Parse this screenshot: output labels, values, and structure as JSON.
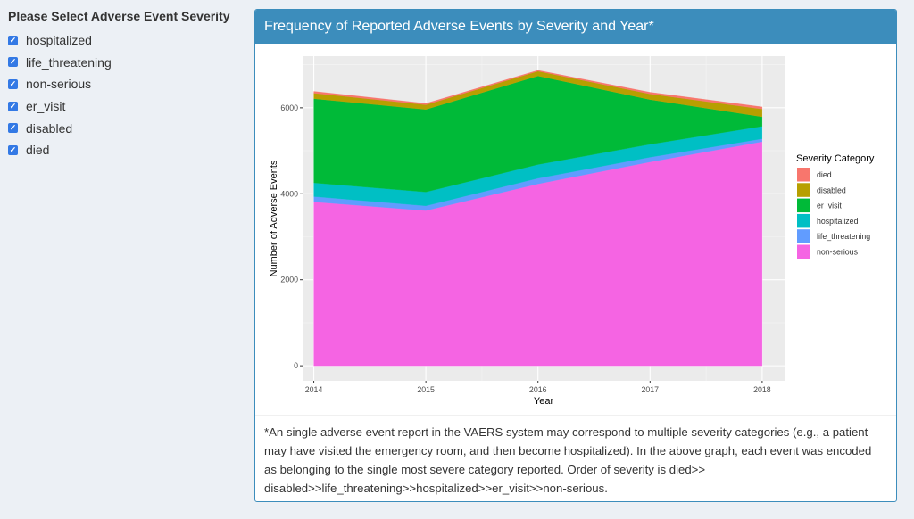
{
  "sidebar": {
    "title": "Please Select Adverse Event Severity",
    "options": [
      {
        "label": "hospitalized",
        "checked": true
      },
      {
        "label": "life_threatening",
        "checked": true
      },
      {
        "label": "non-serious",
        "checked": true
      },
      {
        "label": "er_visit",
        "checked": true
      },
      {
        "label": "disabled",
        "checked": true
      },
      {
        "label": "died",
        "checked": true
      }
    ]
  },
  "panel": {
    "title": "Frequency of Reported Adverse Events by Severity and Year*",
    "footnote": "*An single adverse event report in the VAERS system may correspond to multiple severity categories (e.g., a patient may have visited the emergency room, and then become hospitalized). In the above graph, each event was encoded as belonging to the single most severe category reported. Order of severity is died>> disabled>>life_threatening>>hospitalized>>er_visit>>non-serious."
  },
  "chart_data": {
    "type": "area",
    "stacked": true,
    "title": "",
    "xlabel": "Year",
    "ylabel": "Number of Adverse Events",
    "x": [
      2014,
      2015,
      2016,
      2017,
      2018
    ],
    "xticks": [
      "2014",
      "2015",
      "2016",
      "2017",
      "2018"
    ],
    "yticks": [
      0,
      2000,
      4000,
      6000
    ],
    "ylim": [
      -350,
      7200
    ],
    "xlim": [
      2013.9,
      2018.2
    ],
    "grid": true,
    "legend": {
      "title": "Severity Category",
      "position": "right",
      "entries": [
        "died",
        "disabled",
        "er_visit",
        "hospitalized",
        "life_threatening",
        "non-serious"
      ]
    },
    "stack_order_bottom_to_top": [
      "non-serious",
      "life_threatening",
      "hospitalized",
      "er_visit",
      "disabled",
      "died"
    ],
    "series": [
      {
        "name": "non-serious",
        "color": "#f564e3",
        "values": [
          3810,
          3610,
          4230,
          4740,
          5210
        ]
      },
      {
        "name": "life_threatening",
        "color": "#619cff",
        "values": [
          125,
          110,
          130,
          110,
          70
        ]
      },
      {
        "name": "hospitalized",
        "color": "#00bfc4",
        "values": [
          320,
          320,
          320,
          300,
          290
        ]
      },
      {
        "name": "er_visit",
        "color": "#00ba38",
        "values": [
          1955,
          1920,
          2060,
          1040,
          220
        ]
      },
      {
        "name": "disabled",
        "color": "#b79f00",
        "values": [
          130,
          110,
          110,
          130,
          180
        ]
      },
      {
        "name": "died",
        "color": "#f8766d",
        "values": [
          40,
          30,
          20,
          40,
          50
        ]
      }
    ]
  }
}
